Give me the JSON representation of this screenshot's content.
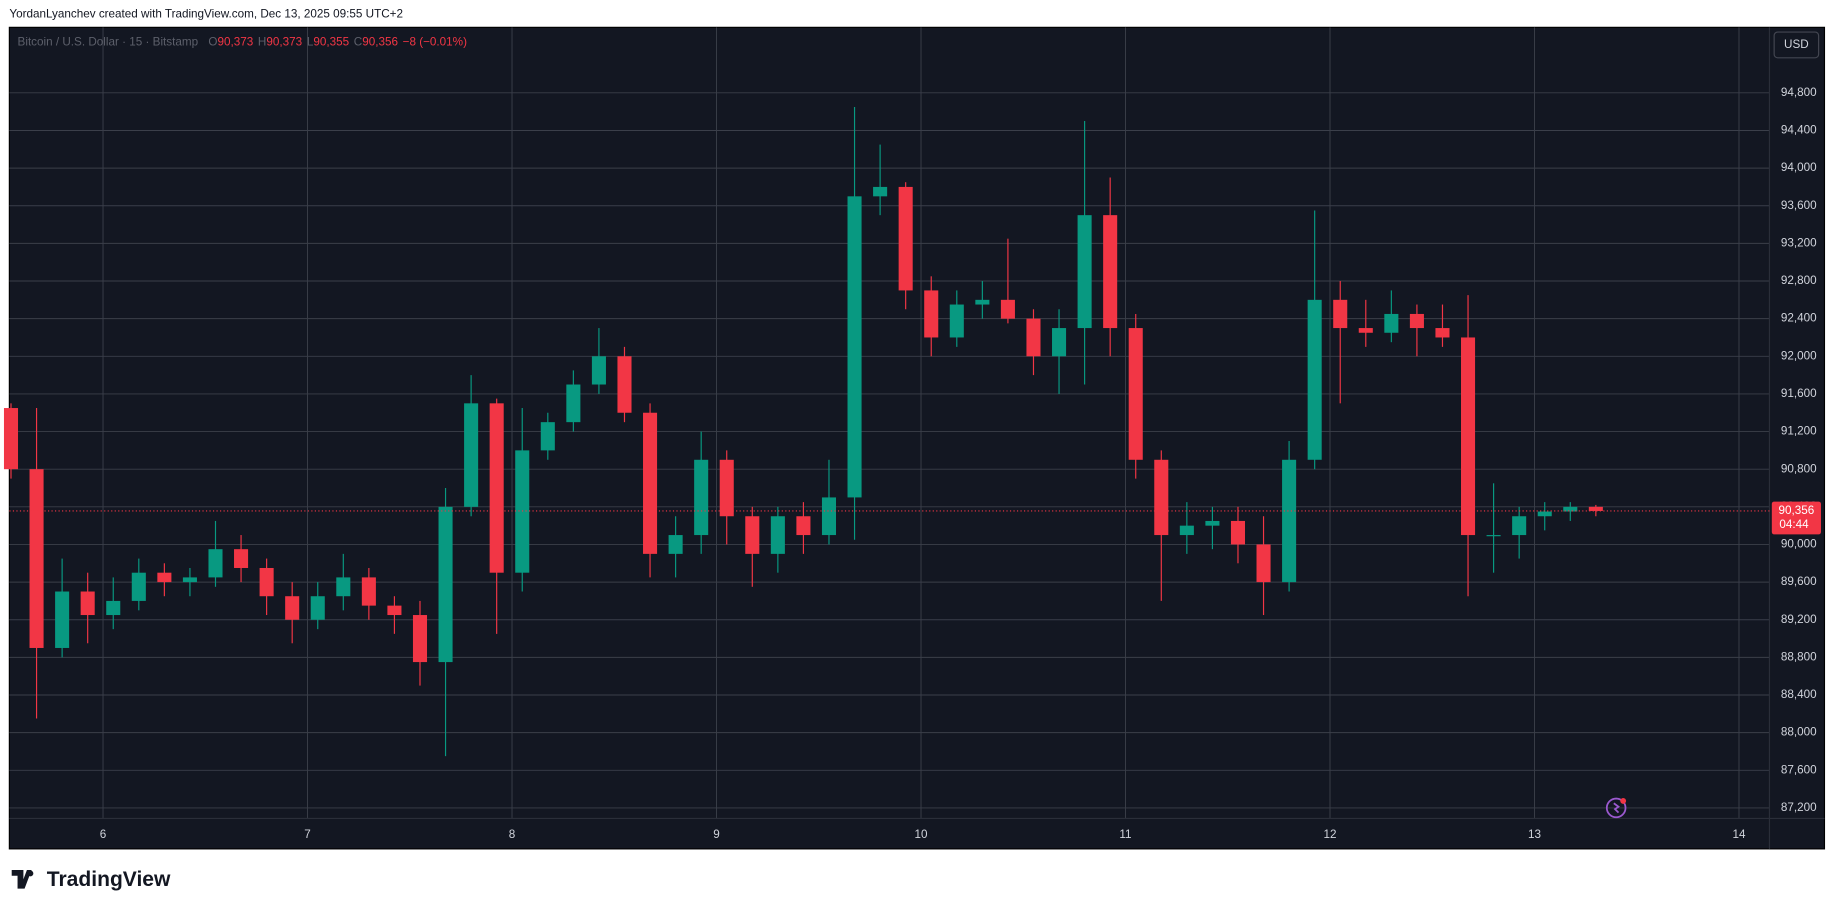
{
  "header": {
    "attribution": "YordanLyanchev created with TradingView.com, Dec 13, 2025 09:55 UTC+2"
  },
  "chart_data": {
    "type": "candlestick",
    "title": "Bitcoin / U.S. Dollar · 15 · Bitstamp",
    "ohlc_legend": [
      {
        "key": "O",
        "value": "90,373"
      },
      {
        "key": "H",
        "value": "90,373"
      },
      {
        "key": "L",
        "value": "90,355"
      },
      {
        "key": "C",
        "value": "90,356"
      }
    ],
    "change": "−8 (−0.01%)",
    "currency": "USD",
    "up_color": "#089981",
    "down_color": "#f23645",
    "x": [
      5.55,
      5.675,
      5.8,
      5.925,
      6.05,
      6.175,
      6.3,
      6.425,
      6.55,
      6.675,
      6.8,
      6.925,
      7.05,
      7.175,
      7.3,
      7.425,
      7.55,
      7.675,
      7.8,
      7.925,
      8.05,
      8.175,
      8.3,
      8.425,
      8.55,
      8.675,
      8.8,
      8.925,
      9.05,
      9.175,
      9.3,
      9.425,
      9.55,
      9.675,
      9.8,
      9.925,
      10.05,
      10.175,
      10.3,
      10.425,
      10.55,
      10.675,
      10.8,
      10.925,
      11.05,
      11.175,
      11.3,
      11.425,
      11.55,
      11.675,
      11.8,
      11.925,
      12.05,
      12.175,
      12.3,
      12.425,
      12.55,
      12.675,
      12.8,
      12.925,
      13.05,
      13.175,
      13.3
    ],
    "open": [
      91450,
      90800,
      88900,
      89500,
      89250,
      89400,
      89700,
      89600,
      89650,
      89950,
      89750,
      89450,
      89200,
      89450,
      89650,
      89350,
      89250,
      88750,
      90400,
      91500,
      89700,
      91000,
      91300,
      91700,
      92000,
      91400,
      89900,
      90100,
      90900,
      90300,
      89900,
      90300,
      90100,
      90500,
      93700,
      93800,
      92700,
      92200,
      92550,
      92600,
      92400,
      92000,
      92300,
      93500,
      92300,
      90900,
      90100,
      90200,
      90250,
      90000,
      89600,
      90900,
      92600,
      92300,
      92250,
      92450,
      92300,
      92200,
      90100,
      90100,
      90300,
      90350,
      90400
    ],
    "high": [
      91500,
      91450,
      89850,
      89700,
      89650,
      89850,
      89800,
      89750,
      90250,
      90100,
      89850,
      89600,
      89600,
      89900,
      89750,
      89450,
      89400,
      90600,
      91800,
      91550,
      91450,
      91400,
      91850,
      92300,
      92100,
      91500,
      90300,
      91200,
      91000,
      90400,
      90400,
      90450,
      90900,
      94650,
      94250,
      93850,
      92850,
      92700,
      92800,
      93250,
      92500,
      92500,
      94500,
      93900,
      92450,
      91000,
      90450,
      90400,
      90400,
      90300,
      91100,
      93550,
      92800,
      92600,
      92700,
      92550,
      92550,
      92650,
      90650,
      90400,
      90450,
      90450,
      90420
    ],
    "low": [
      90700,
      88150,
      88800,
      88950,
      89100,
      89300,
      89450,
      89450,
      89550,
      89600,
      89250,
      88950,
      89100,
      89300,
      89200,
      89050,
      88500,
      87750,
      90300,
      89050,
      89500,
      90900,
      91200,
      91600,
      91300,
      89650,
      89650,
      89900,
      90000,
      89550,
      89700,
      89900,
      90000,
      90050,
      93500,
      92500,
      92000,
      92100,
      92400,
      92350,
      91800,
      91600,
      91700,
      92000,
      90700,
      89400,
      89900,
      89950,
      89800,
      89250,
      89500,
      90800,
      91500,
      92100,
      92150,
      92000,
      92100,
      89450,
      89700,
      89850,
      90150,
      90250,
      90300
    ],
    "close": [
      90800,
      88900,
      89500,
      89250,
      89400,
      89700,
      89600,
      89650,
      89950,
      89750,
      89450,
      89200,
      89450,
      89650,
      89350,
      89250,
      88750,
      90400,
      91500,
      89700,
      91000,
      91300,
      91700,
      92000,
      91400,
      89900,
      90100,
      90900,
      90300,
      89900,
      90300,
      90100,
      90500,
      93700,
      93800,
      92700,
      92200,
      92550,
      92600,
      92400,
      92000,
      92300,
      93500,
      92300,
      90900,
      90100,
      90200,
      90250,
      90000,
      89600,
      90900,
      92600,
      92300,
      92250,
      92450,
      92300,
      92200,
      90100,
      90100,
      90300,
      90350,
      90400,
      90356
    ],
    "last_price": {
      "value": 90356,
      "label": "90,356"
    },
    "countdown": "04:44",
    "xlim": [
      5.542,
      14.149
    ],
    "ylim": [
      87088,
      95496
    ],
    "xticks": [
      6,
      7,
      8,
      9,
      10,
      11,
      12,
      13,
      14
    ],
    "yticks": [
      {
        "value": 87200,
        "label": "87,200"
      },
      {
        "value": 87600,
        "label": "87,600"
      },
      {
        "value": 88000,
        "label": "88,000"
      },
      {
        "value": 88400,
        "label": "88,400"
      },
      {
        "value": 88800,
        "label": "88,800"
      },
      {
        "value": 89200,
        "label": "89,200"
      },
      {
        "value": 89600,
        "label": "89,600"
      },
      {
        "value": 90000,
        "label": "90,000"
      },
      {
        "value": 90400,
        "label": "90,400"
      },
      {
        "value": 90800,
        "label": "90,800"
      },
      {
        "value": 91200,
        "label": "91,200"
      },
      {
        "value": 91600,
        "label": "91,600"
      },
      {
        "value": 92000,
        "label": "92,000"
      },
      {
        "value": 92400,
        "label": "92,400"
      },
      {
        "value": 92800,
        "label": "92,800"
      },
      {
        "value": 93200,
        "label": "93,200"
      },
      {
        "value": 93600,
        "label": "93,600"
      },
      {
        "value": 94000,
        "label": "94,000"
      },
      {
        "value": 94400,
        "label": "94,400"
      },
      {
        "value": 94800,
        "label": "94,800"
      }
    ],
    "grid": true
  },
  "footer": {
    "logo": "TradingView"
  }
}
